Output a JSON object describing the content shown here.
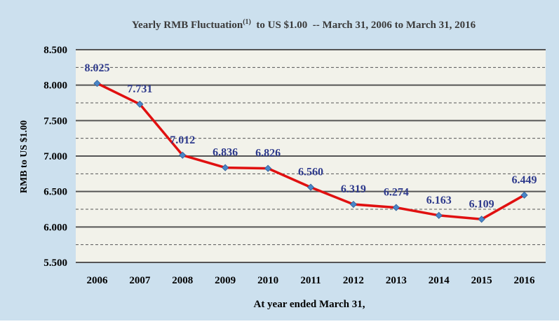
{
  "chart_data": {
    "type": "line",
    "title": "Yearly RMB Fluctuation",
    "title_superscript": "(1)",
    "title_suffix": "  to US $1.00  -- March 31, 2006 to March 31, 2016",
    "xlabel": "At year ended March 31,",
    "ylabel": "RMB to US $1.00",
    "categories": [
      "2006",
      "2007",
      "2008",
      "2009",
      "2010",
      "2011",
      "2012",
      "2013",
      "2014",
      "2015",
      "2016"
    ],
    "series": [
      {
        "values": [
          8.025,
          7.731,
          7.012,
          6.836,
          6.826,
          6.56,
          6.319,
          6.274,
          6.163,
          6.109,
          6.449
        ],
        "labels": [
          "8.025",
          "7.731",
          "7.012",
          "6.836",
          "6.826",
          "6.560",
          "6.319",
          "6.274",
          "6.163",
          "6.109",
          "6.449"
        ]
      }
    ],
    "ylim": [
      5.5,
      8.5
    ],
    "yticks": [
      "5.500",
      "6.000",
      "6.500",
      "7.000",
      "7.500",
      "8.000",
      "8.500"
    ],
    "grid": true,
    "legend": "none",
    "colors": {
      "background": "#CCE0EE",
      "plot_background": "#F2F2EA",
      "line": "#E01010",
      "marker": "#4A86C8",
      "data_label": "#2E3A8C",
      "title": "#3A3A3A",
      "text": "#000000",
      "grid_major": "#555555",
      "grid_minor": "#555555"
    }
  }
}
